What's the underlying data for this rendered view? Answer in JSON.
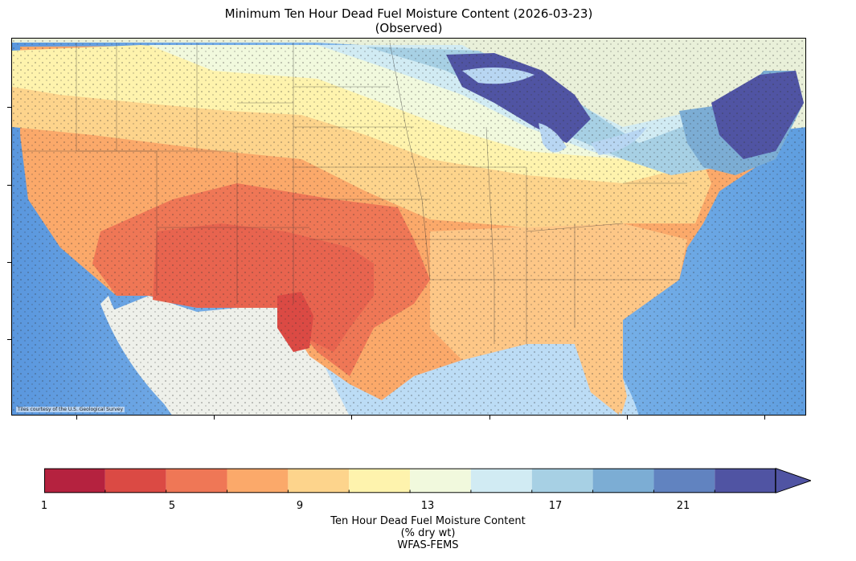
{
  "title": {
    "line1": "Minimum Ten Hour Dead Fuel Moisture Content (2026-03-23)",
    "line2": "(Observed)"
  },
  "map": {
    "attribution": "Tiles courtesy of the U.S. Geological Survey"
  },
  "colorbar": {
    "label_line1": "Ten Hour Dead Fuel Moisture Content",
    "label_line2": "(% dry wt)",
    "label_line3": "WFAS-FEMS",
    "ticks": [
      "1",
      "5",
      "9",
      "13",
      "17",
      "21"
    ],
    "bins": [
      1,
      3,
      5,
      7,
      9,
      11,
      13,
      15,
      17,
      19,
      21,
      23
    ],
    "colors": [
      "#b5223f",
      "#db4a44",
      "#ef7756",
      "#fba96a",
      "#fdd48c",
      "#fef3ad",
      "#f1f9dd",
      "#d1ebf3",
      "#a7d0e4",
      "#7cadd4",
      "#6183c0",
      "#5054a3"
    ],
    "extend": "max"
  }
}
